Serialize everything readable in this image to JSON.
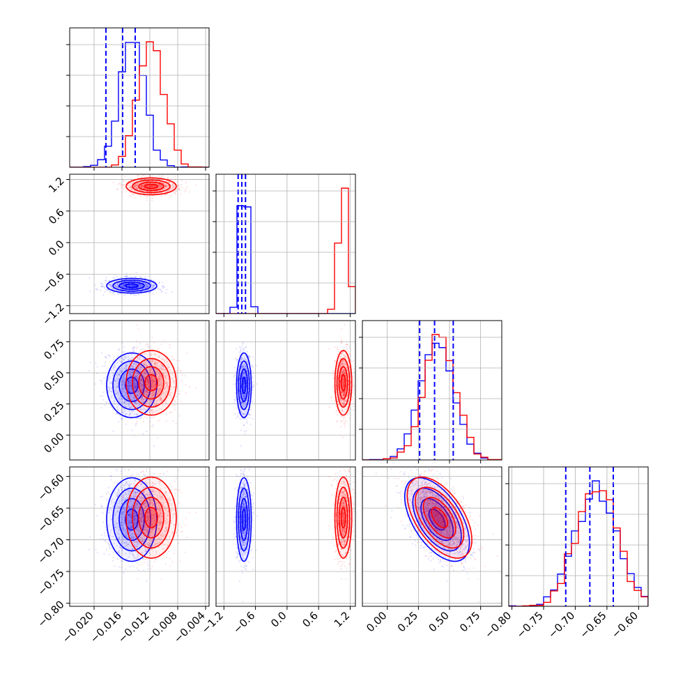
{
  "chart_data": {
    "type": "corner",
    "colors": {
      "blue": "#0000ff",
      "red": "#ff0000",
      "grid": "#b0b0b0"
    },
    "parameters": [
      {
        "range": [
          -0.0235,
          -0.0035
        ]
      },
      {
        "range": [
          -1.35,
          1.3
        ]
      },
      {
        "range": [
          -0.2,
          0.92
        ]
      },
      {
        "range": [
          -0.805,
          -0.585
        ]
      }
    ],
    "ticks": {
      "bottom": [
        [
          "−0.020",
          "−0.016",
          "−0.012",
          "−0.008",
          "−0.004"
        ],
        [
          "−1.2",
          "−0.6",
          "0.0",
          "0.6",
          "1.2"
        ],
        [
          "0.00",
          "0.25",
          "0.50",
          "0.75"
        ],
        [
          "−0.80",
          "−0.75",
          "−0.70",
          "−0.65",
          "−0.60"
        ]
      ],
      "left": [
        [],
        [
          "1.2",
          "0.6",
          "0.0",
          "−0.6",
          "−1.2"
        ],
        [
          "0.75",
          "0.50",
          "0.25",
          "0.00"
        ],
        [
          "−0.60",
          "−0.65",
          "−0.70",
          "−0.75",
          "−0.80"
        ]
      ]
    },
    "series": [
      {
        "color": "blue",
        "mean": [
          -0.0146,
          -0.82,
          0.4,
          -0.668
        ],
        "std": [
          0.0018,
          0.07,
          0.13,
          0.033
        ],
        "quantiles": [
          [
            -0.0183,
            -0.0159,
            -0.0141
          ],
          [
            -0.93,
            -0.86,
            -0.79
          ],
          [
            0.26,
            0.38,
            0.53
          ],
          [
            -0.715,
            -0.677,
            -0.64
          ]
        ],
        "correlations": {
          "2-3": -0.55
        }
      },
      {
        "color": "red",
        "mean": [
          -0.0118,
          1.07,
          0.42,
          -0.665
        ],
        "std": [
          0.0018,
          0.08,
          0.13,
          0.032
        ],
        "correlations": {
          "2-3": -0.55
        }
      }
    ]
  }
}
